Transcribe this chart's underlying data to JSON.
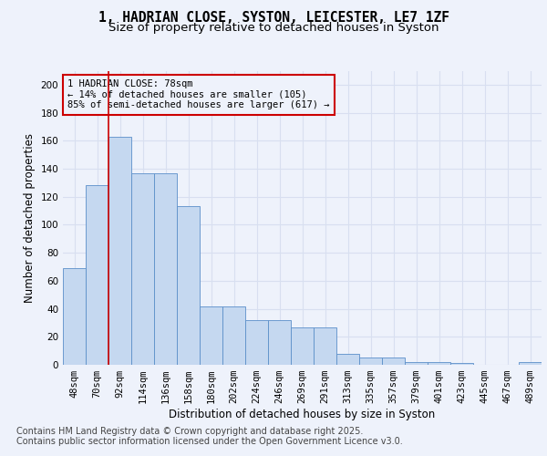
{
  "title_line1": "1, HADRIAN CLOSE, SYSTON, LEICESTER, LE7 1ZF",
  "title_line2": "Size of property relative to detached houses in Syston",
  "xlabel": "Distribution of detached houses by size in Syston",
  "ylabel": "Number of detached properties",
  "footer_line1": "Contains HM Land Registry data © Crown copyright and database right 2025.",
  "footer_line2": "Contains public sector information licensed under the Open Government Licence v3.0.",
  "annotation_line1": "1 HADRIAN CLOSE: 78sqm",
  "annotation_line2": "← 14% of detached houses are smaller (105)",
  "annotation_line3": "85% of semi-detached houses are larger (617) →",
  "bar_labels": [
    "48sqm",
    "70sqm",
    "92sqm",
    "114sqm",
    "136sqm",
    "158sqm",
    "180sqm",
    "202sqm",
    "224sqm",
    "246sqm",
    "269sqm",
    "291sqm",
    "313sqm",
    "335sqm",
    "357sqm",
    "379sqm",
    "401sqm",
    "423sqm",
    "445sqm",
    "467sqm",
    "489sqm"
  ],
  "bar_values": [
    69,
    128,
    163,
    137,
    137,
    113,
    42,
    42,
    32,
    32,
    27,
    27,
    8,
    5,
    5,
    2,
    2,
    1,
    0,
    0,
    2
  ],
  "bar_color": "#c5d8f0",
  "bar_edge_color": "#5b8fc9",
  "vline_x_index": 1.5,
  "vline_color": "#cc0000",
  "ylim": [
    0,
    210
  ],
  "yticks": [
    0,
    20,
    40,
    60,
    80,
    100,
    120,
    140,
    160,
    180,
    200
  ],
  "bg_color": "#eef2fb",
  "plot_bg_color": "#eef2fb",
  "grid_color": "#d8dff0",
  "annotation_box_color": "#cc0000",
  "title_fontsize": 10.5,
  "subtitle_fontsize": 9.5,
  "axis_label_fontsize": 8.5,
  "tick_fontsize": 7.5,
  "footer_fontsize": 7.0,
  "ann_fontsize": 7.5
}
